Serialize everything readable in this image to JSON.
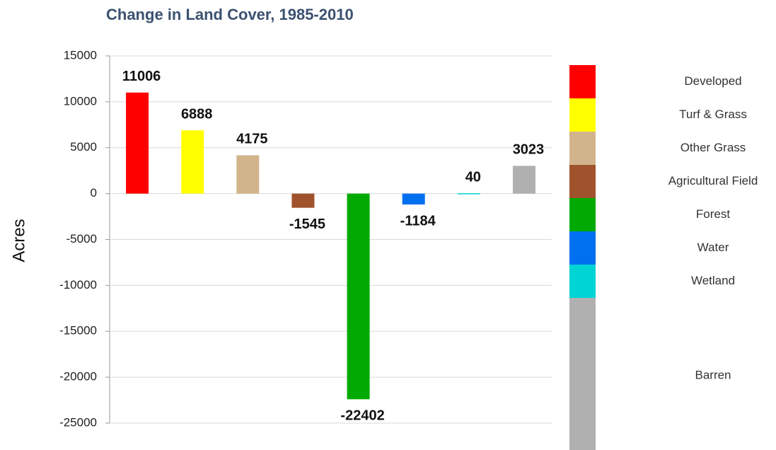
{
  "chart_data": {
    "type": "bar",
    "title": "Change in Land Cover, 1985-2010",
    "y_label": "Acres",
    "categories": [
      "Developed",
      "Turf & Grass",
      "Other Grass",
      "Agricultural Field",
      "Forest",
      "Water",
      "Wetland",
      "Barren"
    ],
    "values": [
      11006,
      6888,
      4175,
      -1545,
      -22402,
      -1184,
      40,
      3023
    ],
    "colors": [
      "#ff0000",
      "#ffff00",
      "#d2b48c",
      "#a0522d",
      "#00aa00",
      "#0070f0",
      "#00d4d4",
      "#b0b0b0"
    ],
    "ylim": [
      -25000,
      15000
    ],
    "yticks": [
      -25000,
      -20000,
      -15000,
      -10000,
      -5000,
      0,
      5000,
      10000,
      15000
    ],
    "grid": true
  }
}
